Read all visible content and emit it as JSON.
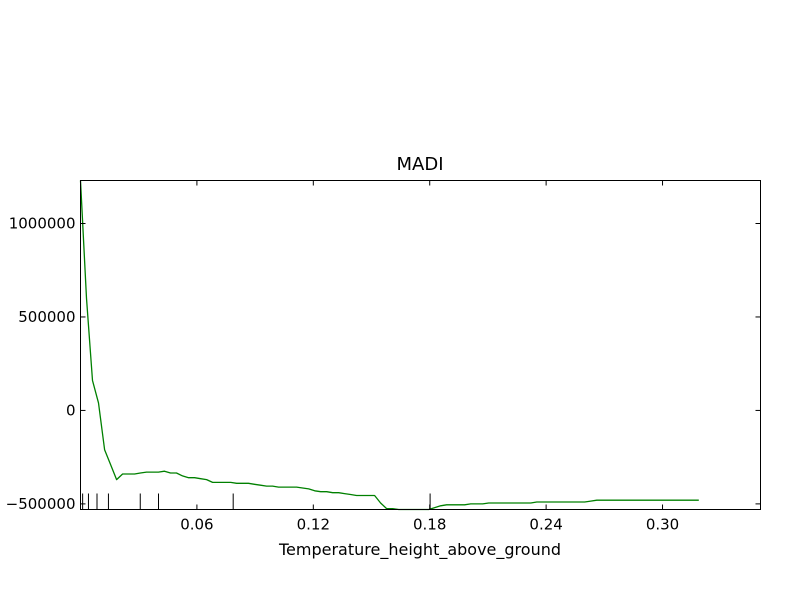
{
  "chart_data": {
    "type": "line",
    "title": "MADI",
    "xlabel": "Temperature_height_above_ground",
    "ylabel": "",
    "xlim": [
      0,
      0.3505
    ],
    "ylim": [
      -530000,
      1230000
    ],
    "xticks": [
      0.06,
      0.12,
      0.18,
      0.24,
      0.3
    ],
    "xtick_labels": [
      "0.06",
      "0.12",
      "0.18",
      "0.24",
      "0.30"
    ],
    "yticks": [
      -500000,
      0,
      500000,
      1000000
    ],
    "ytick_labels": [
      "−500000",
      "0",
      "500000",
      "1000000"
    ],
    "grid": false,
    "legend": null,
    "line_color": "#008000",
    "series": [
      {
        "x": [
          0.0,
          0.0031,
          0.0062,
          0.0093,
          0.0124,
          0.0155,
          0.0186,
          0.0217,
          0.0248,
          0.0279,
          0.0309,
          0.034,
          0.0371,
          0.0402,
          0.0433,
          0.0464,
          0.0495,
          0.0526,
          0.0557,
          0.0588,
          0.0619,
          0.065,
          0.0681,
          0.0712,
          0.0743,
          0.0774,
          0.0805,
          0.0835,
          0.0866,
          0.0897,
          0.0928,
          0.0959,
          0.099,
          0.1021,
          0.1052,
          0.1083,
          0.1114,
          0.1145,
          0.1176,
          0.1207,
          0.1238,
          0.1269,
          0.13,
          0.1331,
          0.1361,
          0.1392,
          0.1423,
          0.1454,
          0.1485,
          0.1516,
          0.1547,
          0.1578,
          0.1609,
          0.164,
          0.1671,
          0.1702,
          0.1733,
          0.1764,
          0.1795,
          0.1826,
          0.1856,
          0.1887,
          0.1918,
          0.1949,
          0.198,
          0.2011,
          0.2042,
          0.2073,
          0.2104,
          0.2135,
          0.2166,
          0.2197,
          0.2228,
          0.2259,
          0.229,
          0.2321,
          0.2352,
          0.2382,
          0.2413,
          0.2444,
          0.2475,
          0.2506,
          0.2537,
          0.2568,
          0.2599,
          0.263,
          0.2661,
          0.2692,
          0.2723,
          0.2754,
          0.2785,
          0.2816,
          0.2847,
          0.2877,
          0.2908,
          0.2939,
          0.297,
          0.3001,
          0.3032,
          0.3063,
          0.3094,
          0.3125,
          0.3156,
          0.3187
        ],
        "y": [
          1230000,
          600000,
          160000,
          40000,
          -210000,
          -290000,
          -370000,
          -340000,
          -340000,
          -340000,
          -335000,
          -330000,
          -330000,
          -330000,
          -325000,
          -335000,
          -335000,
          -350000,
          -360000,
          -360000,
          -365000,
          -370000,
          -385000,
          -385000,
          -385000,
          -385000,
          -390000,
          -390000,
          -390000,
          -395000,
          -400000,
          -405000,
          -405000,
          -410000,
          -410000,
          -410000,
          -410000,
          -415000,
          -420000,
          -430000,
          -435000,
          -435000,
          -440000,
          -440000,
          -445000,
          -450000,
          -455000,
          -455000,
          -455000,
          -455000,
          -495000,
          -525000,
          -525000,
          -530000,
          -530000,
          -530000,
          -530000,
          -530000,
          -530000,
          -520000,
          -510000,
          -505000,
          -505000,
          -505000,
          -505000,
          -500000,
          -500000,
          -500000,
          -495000,
          -495000,
          -495000,
          -495000,
          -495000,
          -495000,
          -495000,
          -495000,
          -490000,
          -490000,
          -490000,
          -490000,
          -490000,
          -490000,
          -490000,
          -490000,
          -490000,
          -485000,
          -480000,
          -480000,
          -480000,
          -480000,
          -480000,
          -480000,
          -480000,
          -480000,
          -480000,
          -480000,
          -480000,
          -480000,
          -480000,
          -480000,
          -480000,
          -480000,
          -480000,
          -480000
        ],
        "color": "#008000"
      }
    ],
    "rug_x": [
      0.0,
      0.0011,
      0.0041,
      0.0085,
      0.0144,
      0.0308,
      0.0402,
      0.0787,
      0.1802
    ]
  }
}
